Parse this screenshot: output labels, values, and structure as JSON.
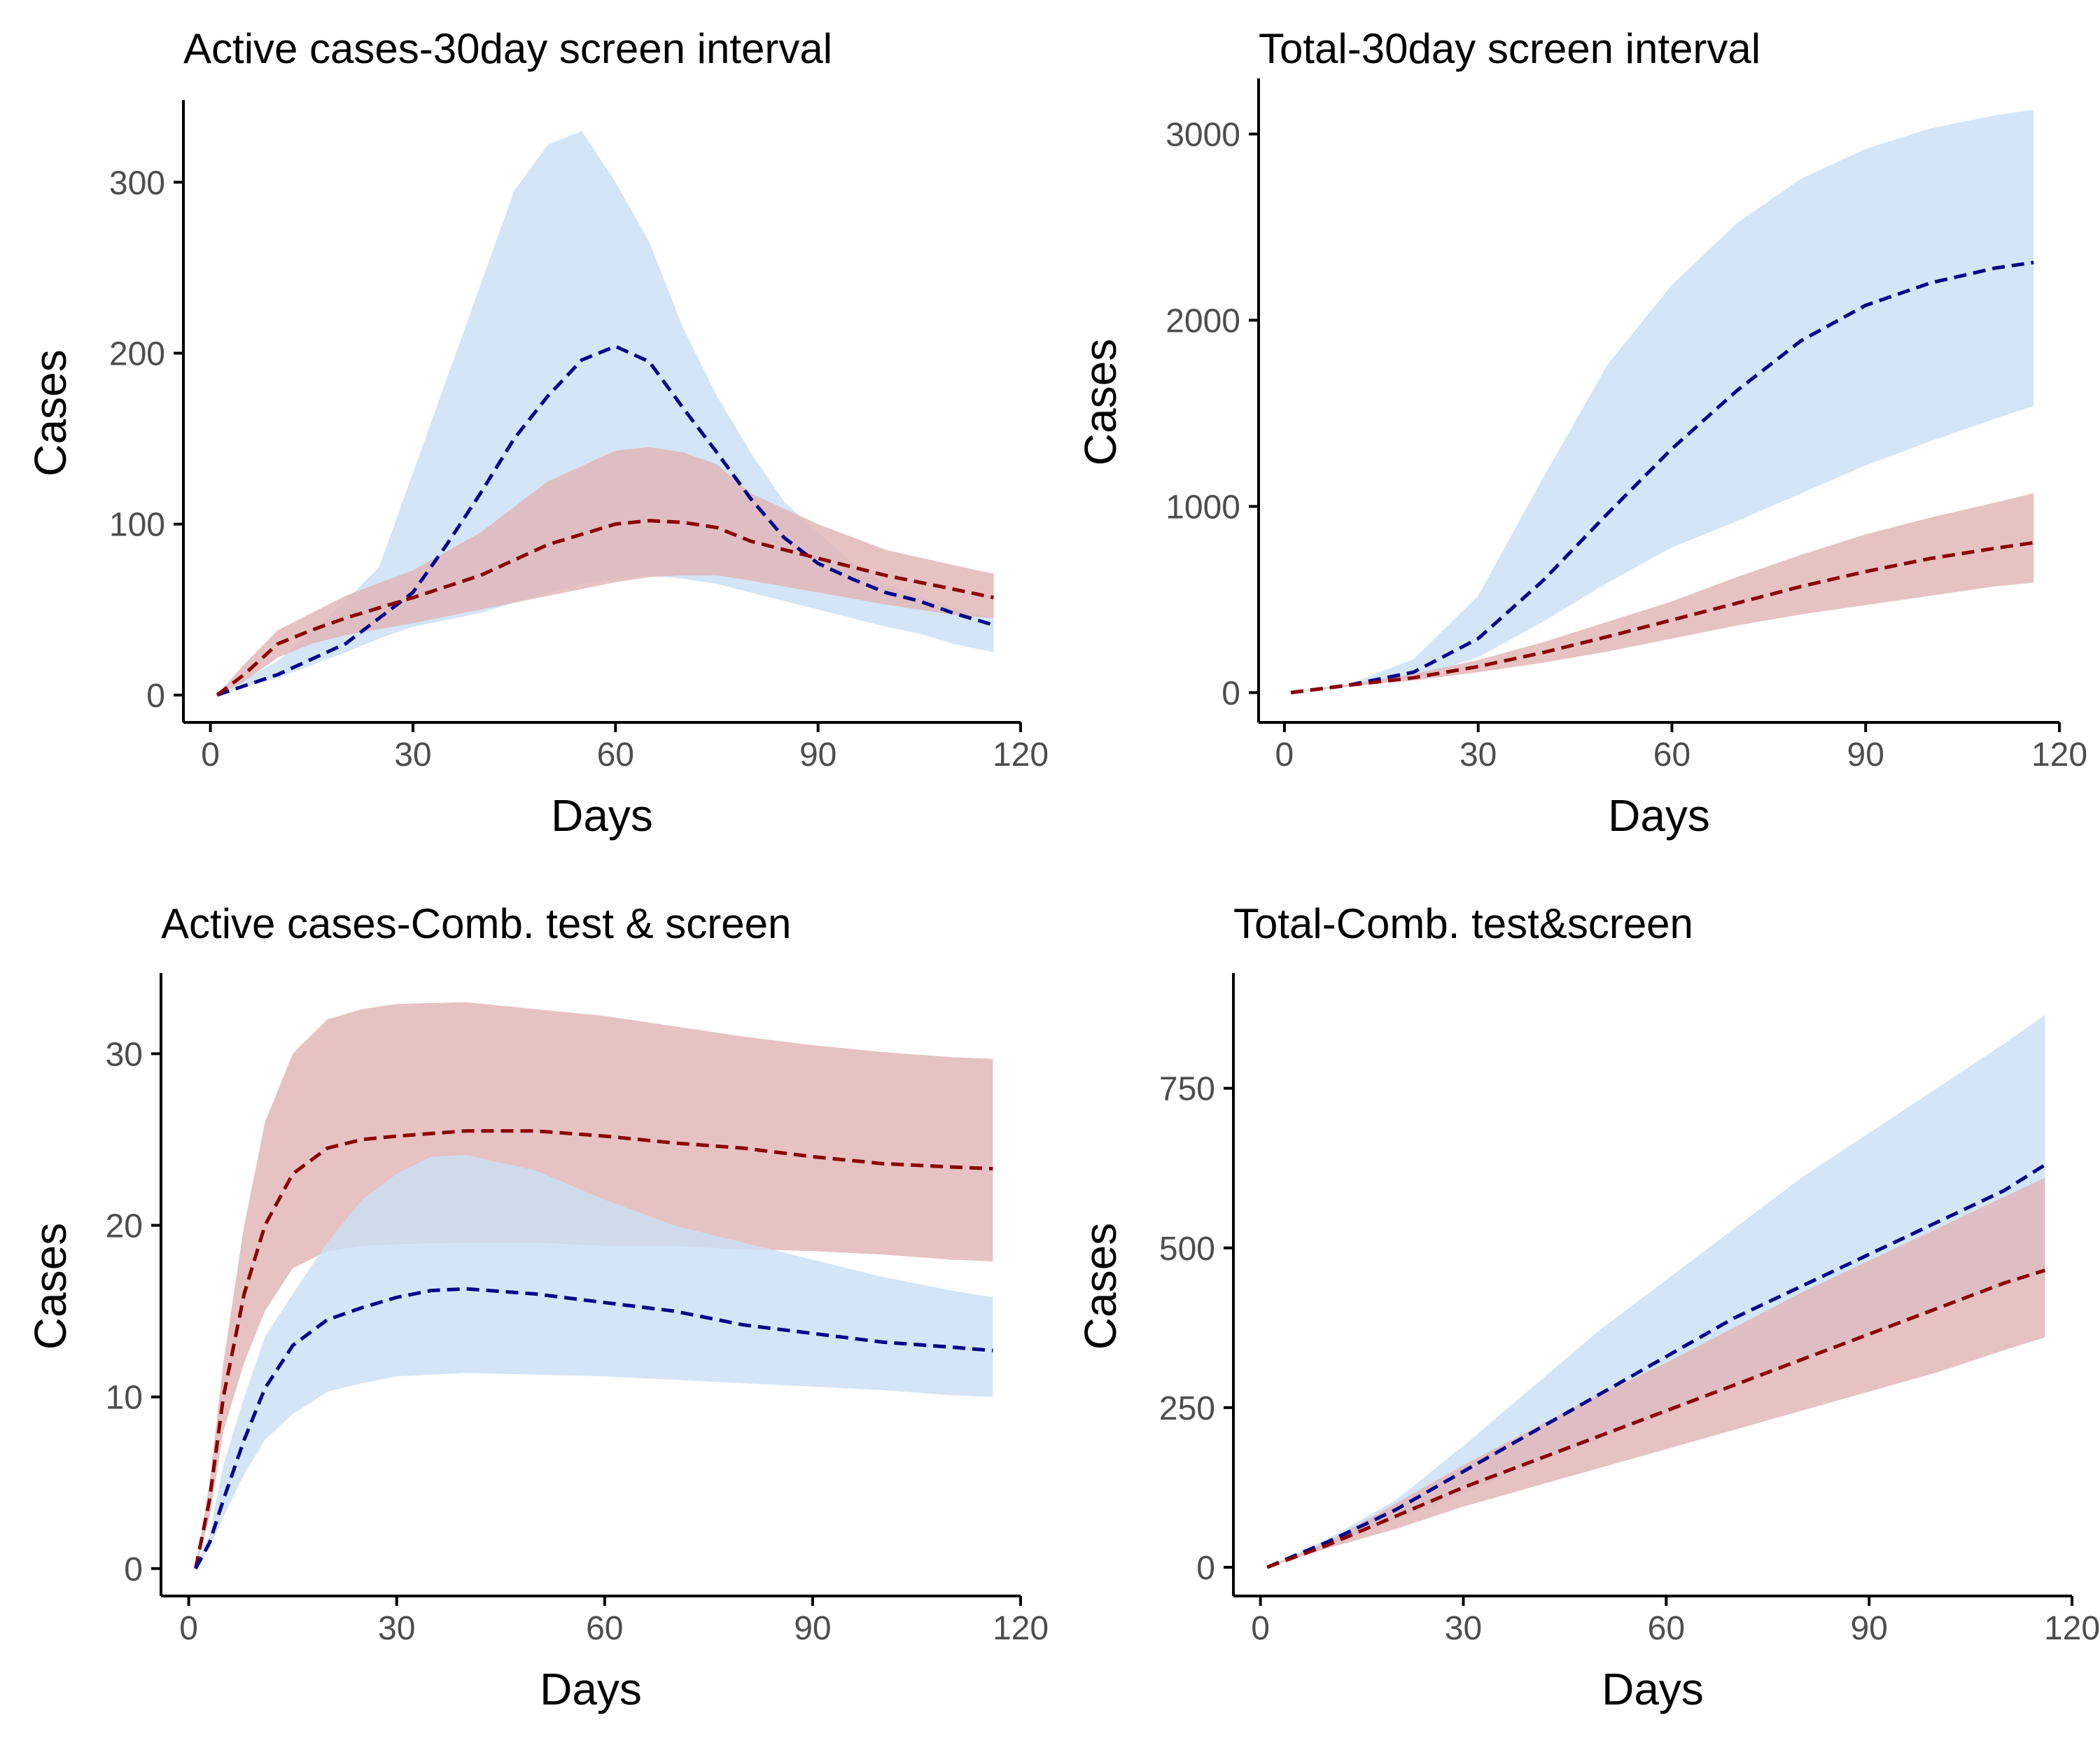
{
  "colors": {
    "blue_line": "#00008b",
    "blue_band": "#c9dff4",
    "red_line": "#8b0000",
    "red_band": "#e1b4b6"
  },
  "chart_data": [
    {
      "type": "area",
      "title": "Active cases-30day screen interval",
      "xlabel": "Days",
      "ylabel": "Cases",
      "xlim": [
        -4,
        120
      ],
      "ylim": [
        -16,
        346
      ],
      "xticks": [
        0,
        30,
        60,
        90,
        120
      ],
      "yticks": [
        0,
        100,
        200,
        300
      ],
      "grid": false,
      "series": [
        {
          "color": "blue",
          "x": [
            1,
            10,
            20,
            25,
            30,
            35,
            40,
            45,
            50,
            55,
            60,
            65,
            70,
            75,
            80,
            85,
            90,
            95,
            100,
            105,
            110,
            116
          ],
          "mean": [
            0,
            12,
            30,
            45,
            60,
            88,
            118,
            150,
            175,
            196,
            204,
            195,
            168,
            142,
            115,
            92,
            77,
            68,
            60,
            55,
            48,
            41
          ],
          "lower": [
            0,
            10,
            25,
            33,
            40,
            44,
            48,
            54,
            60,
            65,
            68,
            70,
            68,
            65,
            60,
            55,
            50,
            45,
            40,
            36,
            30,
            25
          ],
          "upper": [
            0,
            20,
            55,
            75,
            130,
            185,
            240,
            295,
            322,
            330,
            300,
            265,
            215,
            175,
            142,
            113,
            95,
            78,
            65,
            58,
            51,
            45
          ]
        },
        {
          "color": "red",
          "x": [
            1,
            5,
            10,
            15,
            20,
            30,
            40,
            50,
            60,
            65,
            70,
            75,
            80,
            90,
            100,
            110,
            116
          ],
          "mean": [
            0,
            12,
            30,
            38,
            45,
            57,
            70,
            88,
            100,
            102,
            101,
            98,
            90,
            80,
            70,
            62,
            57
          ],
          "lower": [
            0,
            8,
            22,
            30,
            35,
            42,
            50,
            58,
            66,
            69,
            70,
            70,
            67,
            60,
            53,
            47,
            45
          ],
          "upper": [
            0,
            18,
            38,
            48,
            58,
            73,
            95,
            125,
            143,
            145,
            142,
            135,
            118,
            100,
            85,
            76,
            71
          ]
        }
      ]
    },
    {
      "type": "area",
      "title": "Total-30day screen interval",
      "xlabel": "Days",
      "ylabel": "Cases",
      "xlim": [
        -4,
        120
      ],
      "ylim": [
        -160,
        3280
      ],
      "xticks": [
        0,
        30,
        60,
        90,
        120
      ],
      "yticks": [
        0,
        1000,
        2000,
        3000
      ],
      "grid": false,
      "series": [
        {
          "color": "blue",
          "x": [
            1,
            10,
            20,
            30,
            40,
            50,
            60,
            70,
            80,
            90,
            100,
            110,
            116
          ],
          "mean": [
            0,
            40,
            110,
            290,
            600,
            960,
            1310,
            1620,
            1890,
            2080,
            2200,
            2280,
            2310
          ],
          "lower": [
            0,
            35,
            80,
            190,
            380,
            590,
            780,
            920,
            1070,
            1220,
            1350,
            1470,
            1540
          ],
          "upper": [
            0,
            45,
            180,
            520,
            1150,
            1760,
            2190,
            2520,
            2760,
            2920,
            3030,
            3100,
            3130
          ]
        },
        {
          "color": "red",
          "x": [
            1,
            10,
            20,
            30,
            40,
            50,
            60,
            70,
            80,
            90,
            100,
            110,
            116
          ],
          "mean": [
            0,
            40,
            80,
            140,
            215,
            300,
            390,
            480,
            570,
            650,
            720,
            775,
            805
          ],
          "lower": [
            0,
            35,
            65,
            110,
            160,
            220,
            290,
            360,
            420,
            470,
            520,
            570,
            590
          ],
          "upper": [
            0,
            45,
            100,
            175,
            270,
            380,
            490,
            620,
            740,
            850,
            940,
            1020,
            1070
          ]
        }
      ]
    },
    {
      "type": "area",
      "title": "Active cases-Comb. test & screen",
      "xlabel": "Days",
      "ylabel": "Cases",
      "xlim": [
        -4,
        120
      ],
      "ylim": [
        -1.6,
        34.5
      ],
      "xticks": [
        0,
        30,
        60,
        90,
        120
      ],
      "yticks": [
        0,
        10,
        20,
        30
      ],
      "grid": false,
      "series": [
        {
          "color": "red",
          "x": [
            1,
            3,
            5,
            8,
            11,
            15,
            20,
            25,
            30,
            40,
            50,
            60,
            70,
            80,
            90,
            100,
            110,
            116
          ],
          "mean": [
            0,
            4,
            10,
            16,
            20,
            23,
            24.5,
            25,
            25.2,
            25.5,
            25.5,
            25.2,
            24.8,
            24.5,
            24.0,
            23.6,
            23.4,
            23.3
          ],
          "lower": [
            0,
            3,
            8,
            12,
            15,
            17.5,
            18.5,
            18.8,
            18.9,
            19.0,
            19.0,
            18.8,
            18.8,
            18.6,
            18.5,
            18.3,
            18.0,
            17.9
          ],
          "upper": [
            0,
            5,
            12,
            20,
            26,
            30,
            32,
            32.6,
            32.9,
            33.0,
            32.6,
            32.2,
            31.6,
            31.0,
            30.5,
            30.1,
            29.8,
            29.7
          ]
        },
        {
          "color": "blue",
          "x": [
            1,
            3,
            5,
            8,
            11,
            15,
            20,
            25,
            30,
            35,
            40,
            50,
            60,
            70,
            80,
            90,
            100,
            110,
            116
          ],
          "mean": [
            0,
            1.5,
            4,
            7.5,
            10.5,
            13,
            14.5,
            15.2,
            15.8,
            16.2,
            16.3,
            16.0,
            15.5,
            15.0,
            14.2,
            13.7,
            13.2,
            12.9,
            12.7
          ],
          "lower": [
            0,
            1.2,
            3,
            5.5,
            7.5,
            9,
            10.3,
            10.8,
            11.2,
            11.3,
            11.4,
            11.3,
            11.2,
            11.0,
            10.8,
            10.6,
            10.4,
            10.1,
            10.0
          ],
          "upper": [
            0,
            2,
            6,
            10,
            13.5,
            16,
            19,
            21.5,
            23,
            24,
            24.1,
            23.2,
            21.5,
            20.0,
            19.0,
            18.0,
            17.0,
            16.2,
            15.8
          ]
        }
      ]
    },
    {
      "type": "area",
      "title": "Total-Comb. test&screen",
      "xlabel": "Days",
      "ylabel": "Cases",
      "xlim": [
        -4,
        120
      ],
      "ylim": [
        -45,
        925
      ],
      "xticks": [
        0,
        30,
        60,
        90,
        120
      ],
      "yticks": [
        0,
        250,
        500,
        750
      ],
      "grid": false,
      "series": [
        {
          "color": "blue",
          "x": [
            1,
            10,
            20,
            30,
            40,
            50,
            60,
            70,
            80,
            90,
            100,
            110,
            116
          ],
          "mean": [
            0,
            40,
            90,
            150,
            210,
            270,
            330,
            390,
            440,
            490,
            540,
            590,
            630
          ],
          "lower": [
            0,
            35,
            75,
            115,
            160,
            200,
            240,
            285,
            325,
            365,
            405,
            440,
            460
          ],
          "upper": [
            0,
            45,
            105,
            190,
            280,
            370,
            450,
            530,
            610,
            680,
            750,
            820,
            865
          ]
        },
        {
          "color": "red",
          "x": [
            1,
            10,
            20,
            30,
            40,
            50,
            60,
            70,
            80,
            90,
            100,
            110,
            116
          ],
          "mean": [
            0,
            35,
            80,
            125,
            165,
            205,
            245,
            285,
            325,
            365,
            405,
            445,
            465
          ],
          "lower": [
            0,
            30,
            60,
            95,
            125,
            155,
            185,
            215,
            245,
            275,
            305,
            340,
            360
          ],
          "upper": [
            0,
            40,
            100,
            160,
            215,
            270,
            320,
            375,
            430,
            480,
            530,
            580,
            610
          ]
        }
      ]
    }
  ]
}
